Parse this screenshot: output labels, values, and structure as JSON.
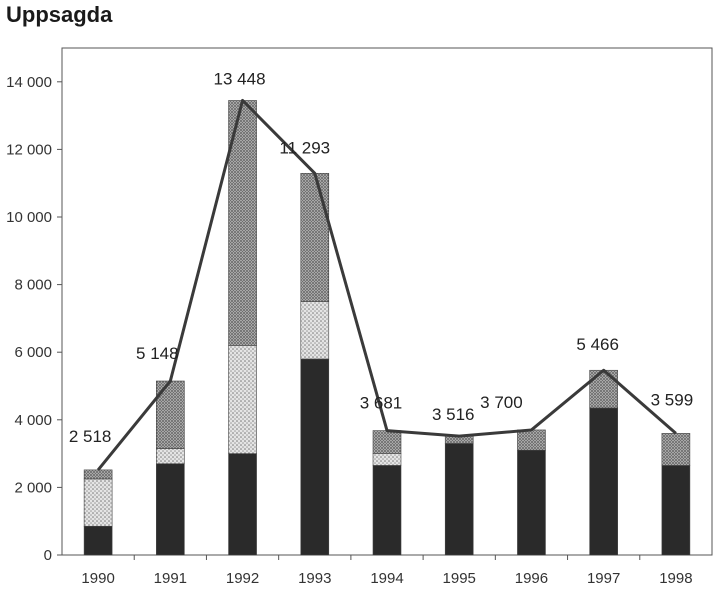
{
  "chart_data": {
    "type": "bar",
    "title": "Uppsagda",
    "categories": [
      "1990",
      "1991",
      "1992",
      "1993",
      "1994",
      "1995",
      "1996",
      "1997",
      "1998"
    ],
    "y_tick_labels": [
      "0",
      "2 000",
      "4 000",
      "6 000",
      "8 000",
      "10 000",
      "12 000",
      "14 000"
    ],
    "ylim": [
      0,
      15000
    ],
    "stacked": true,
    "series": [
      {
        "values": [
          850,
          2700,
          3000,
          5800,
          2650,
          3300,
          3100,
          4350,
          2650
        ],
        "color": "#2a2a2a"
      },
      {
        "values": [
          1400,
          450,
          3200,
          1700,
          350,
          0,
          0,
          0,
          0
        ],
        "color": "#c9c9c9",
        "pattern": "light-dots"
      },
      {
        "values": [
          268,
          1998,
          7248,
          3793,
          681,
          216,
          600,
          1116,
          949
        ],
        "color": "#8f8f8f",
        "pattern": "dark-dots"
      }
    ],
    "totals_line": {
      "values": [
        2518,
        5148,
        13448,
        11293,
        3681,
        3516,
        3700,
        5466,
        3599
      ],
      "color": "#3a3a3a"
    },
    "data_labels": [
      "2 518",
      "5 148",
      "13 448",
      "11 293",
      "3 681",
      "3 516",
      "3 700",
      "5 466",
      "3 599"
    ],
    "grid": false
  }
}
